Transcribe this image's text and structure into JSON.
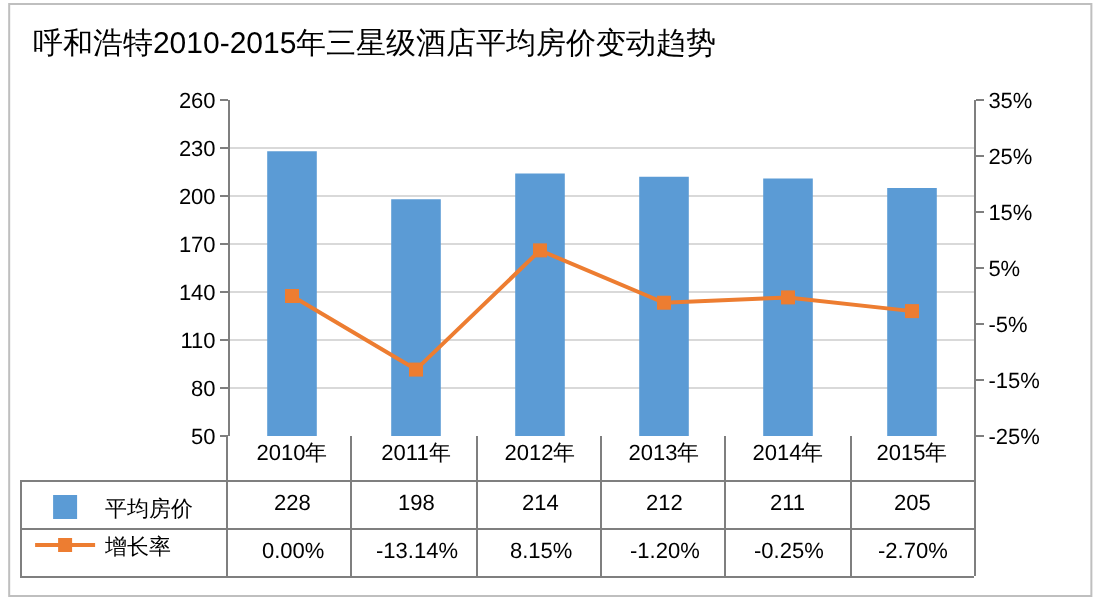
{
  "chart_data": {
    "type": "bar",
    "title": "呼和浩特2010-2015年三星级酒店平均房价变动趋势",
    "categories": [
      "2010年",
      "2011年",
      "2012年",
      "2013年",
      "2014年",
      "2015年"
    ],
    "series": [
      {
        "type": "bar",
        "name": "平均房价",
        "color": "#5b9bd5",
        "values": [
          228,
          198,
          214,
          212,
          211,
          205
        ],
        "value_labels": [
          "228",
          "198",
          "214",
          "212",
          "211",
          "205"
        ]
      },
      {
        "type": "line",
        "name": "增长率",
        "color": "#ed7d31",
        "axis": "y2",
        "marker": "square",
        "values": [
          0,
          -13.14,
          8.15,
          -1.2,
          -0.25,
          -2.7
        ],
        "value_labels": [
          "0.00%",
          "-13.14%",
          "8.15%",
          "-1.20%",
          "-0.25%",
          "-2.70%"
        ]
      }
    ],
    "ylim": [
      50,
      260
    ],
    "yticks": [
      50,
      80,
      110,
      140,
      170,
      200,
      230,
      260
    ],
    "y2lim": [
      -25,
      35
    ],
    "y2ticks": [
      {
        "value": -25,
        "label": "-25%"
      },
      {
        "value": -15,
        "label": "-15%"
      },
      {
        "value": -5,
        "label": "-5%"
      },
      {
        "value": 5,
        "label": "5%"
      },
      {
        "value": 15,
        "label": "15%"
      },
      {
        "value": 25,
        "label": "25%"
      },
      {
        "value": 35,
        "label": "35%"
      }
    ],
    "grid": "y",
    "legend": "bottom left"
  }
}
